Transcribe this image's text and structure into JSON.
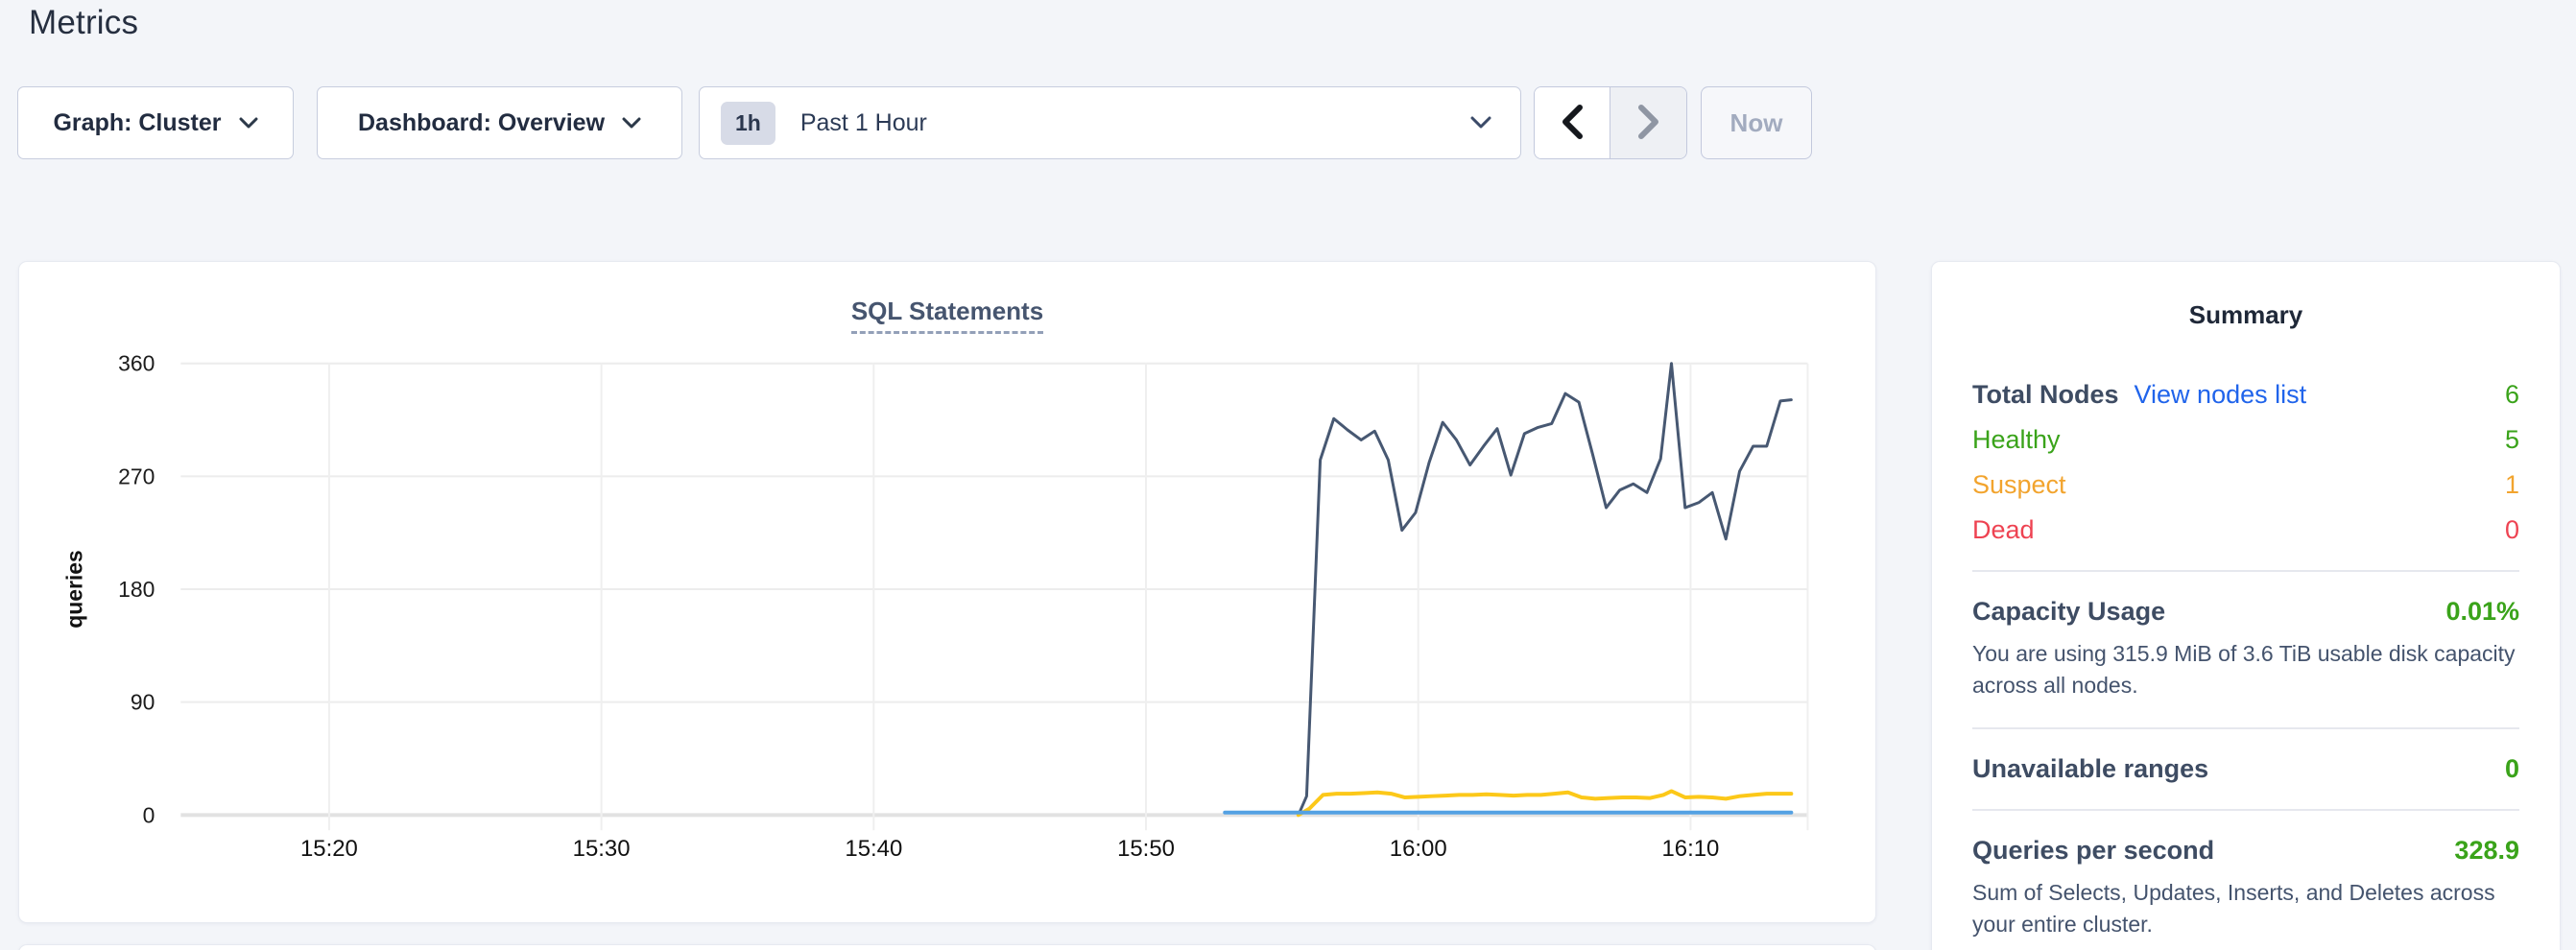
{
  "header": {
    "title": "Metrics"
  },
  "toolbar": {
    "graph_dropdown_label": "Graph: Cluster",
    "dashboard_dropdown_label": "Dashboard: Overview",
    "time_badge": "1h",
    "time_label": "Past 1 Hour",
    "now_button_label": "Now"
  },
  "colors": {
    "link_blue": "#2064eb",
    "status_green": "#3aa31a",
    "status_orange": "#f2a42e",
    "status_red": "#ee4352",
    "series_navy": "#475872",
    "series_yellow": "#fcc819",
    "series_light_blue": "#54a1e3",
    "page_background": "#f3f5f9"
  },
  "chart_data": {
    "type": "line",
    "title": "SQL Statements",
    "ylabel": "queries",
    "grid": true,
    "legend_position": "none",
    "ylim": [
      0,
      360
    ],
    "yticks": [
      0,
      90,
      180,
      270,
      360
    ],
    "xlim_minutes_after_1500": [
      14.55,
      74.3
    ],
    "xticks": [
      {
        "min": 20,
        "label": "15:20"
      },
      {
        "min": 30,
        "label": "15:30"
      },
      {
        "min": 40,
        "label": "15:40"
      },
      {
        "min": 50,
        "label": "15:50"
      },
      {
        "min": 60,
        "label": "16:00"
      },
      {
        "min": 70,
        "label": "16:10"
      }
    ],
    "series": [
      {
        "name": "statements-dark-blue",
        "color": "#475872",
        "width": 3,
        "points": [
          [
            55.6,
            0
          ],
          [
            55.9,
            15
          ],
          [
            56.4,
            283
          ],
          [
            56.9,
            316
          ],
          [
            57.4,
            307
          ],
          [
            57.9,
            299
          ],
          [
            58.4,
            306
          ],
          [
            58.9,
            283
          ],
          [
            59.4,
            227
          ],
          [
            59.9,
            241
          ],
          [
            60.4,
            281
          ],
          [
            60.9,
            313
          ],
          [
            61.4,
            299
          ],
          [
            61.9,
            279
          ],
          [
            62.4,
            294
          ],
          [
            62.9,
            308
          ],
          [
            63.4,
            271
          ],
          [
            63.9,
            304
          ],
          [
            64.4,
            309
          ],
          [
            64.9,
            312
          ],
          [
            65.4,
            336
          ],
          [
            65.9,
            329
          ],
          [
            66.4,
            288
          ],
          [
            66.9,
            245
          ],
          [
            67.4,
            259
          ],
          [
            67.9,
            264
          ],
          [
            68.4,
            257
          ],
          [
            68.9,
            284
          ],
          [
            69.3,
            360
          ],
          [
            69.8,
            245
          ],
          [
            70.3,
            249
          ],
          [
            70.8,
            257
          ],
          [
            71.3,
            220
          ],
          [
            71.8,
            274
          ],
          [
            72.3,
            294
          ],
          [
            72.8,
            294
          ],
          [
            73.3,
            330
          ],
          [
            73.7,
            331
          ]
        ]
      },
      {
        "name": "statements-yellow",
        "color": "#fcc819",
        "width": 4,
        "points": [
          [
            55.6,
            0
          ],
          [
            56.0,
            5
          ],
          [
            56.5,
            16
          ],
          [
            57.0,
            17
          ],
          [
            57.5,
            17
          ],
          [
            58.0,
            17.5
          ],
          [
            58.5,
            18
          ],
          [
            59.0,
            17
          ],
          [
            59.5,
            14
          ],
          [
            60.0,
            14.5
          ],
          [
            60.5,
            15
          ],
          [
            61.0,
            15.5
          ],
          [
            61.5,
            16
          ],
          [
            62.0,
            16
          ],
          [
            62.5,
            16.5
          ],
          [
            63.0,
            16
          ],
          [
            63.5,
            15.5
          ],
          [
            64.0,
            16
          ],
          [
            64.5,
            16
          ],
          [
            65.0,
            17
          ],
          [
            65.5,
            18
          ],
          [
            66.0,
            14
          ],
          [
            66.5,
            13
          ],
          [
            67.0,
            13.5
          ],
          [
            67.5,
            14
          ],
          [
            68.0,
            14
          ],
          [
            68.5,
            13.5
          ],
          [
            69.0,
            16
          ],
          [
            69.3,
            19
          ],
          [
            69.8,
            14
          ],
          [
            70.3,
            14.5
          ],
          [
            70.8,
            14
          ],
          [
            71.3,
            13
          ],
          [
            71.8,
            15
          ],
          [
            72.3,
            16
          ],
          [
            72.8,
            17
          ],
          [
            73.3,
            17
          ],
          [
            73.7,
            17
          ]
        ]
      },
      {
        "name": "statements-light-blue",
        "color": "#54a1e3",
        "width": 4,
        "points": [
          [
            52.9,
            2
          ],
          [
            73.7,
            2
          ]
        ]
      }
    ]
  },
  "summary": {
    "title": "Summary",
    "total_nodes_label": "Total Nodes",
    "view_nodes_link": "View nodes list",
    "total_nodes_value": "6",
    "healthy_label": "Healthy",
    "healthy_value": "5",
    "suspect_label": "Suspect",
    "suspect_value": "1",
    "dead_label": "Dead",
    "dead_value": "0",
    "capacity_label": "Capacity Usage",
    "capacity_value": "0.01%",
    "capacity_description": "You are using 315.9 MiB of 3.6 TiB usable disk capacity across all nodes.",
    "unavailable_label": "Unavailable ranges",
    "unavailable_value": "0",
    "qps_label": "Queries per second",
    "qps_value": "328.9",
    "qps_description": "Sum of Selects, Updates, Inserts, and Deletes across your entire cluster."
  }
}
